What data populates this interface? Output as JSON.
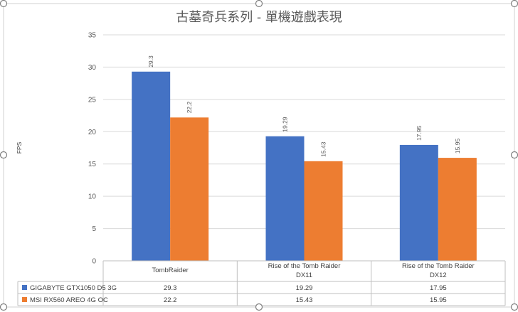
{
  "chart_data": {
    "type": "bar",
    "title": "古墓奇兵系列 - 單機遊戲表現",
    "ylabel": "FPS",
    "ylim": [
      0,
      35
    ],
    "yticks": [
      0,
      5,
      10,
      15,
      20,
      25,
      30,
      35
    ],
    "grid": true,
    "legend": "bottom data table",
    "categories": [
      [
        "TombRaider"
      ],
      [
        "Rise of the Tomb Raider",
        "DX11"
      ],
      [
        "Rise of the Tomb Raider",
        "DX12"
      ]
    ],
    "series": [
      {
        "name": "GIGABYTE GTX1050 D5 3G",
        "color": "#4472C4",
        "values": [
          29.3,
          19.29,
          17.95
        ]
      },
      {
        "name": "MSI RX560 AREO 4G OC",
        "color": "#ED7D31",
        "values": [
          22.2,
          15.43,
          15.95
        ]
      }
    ]
  }
}
